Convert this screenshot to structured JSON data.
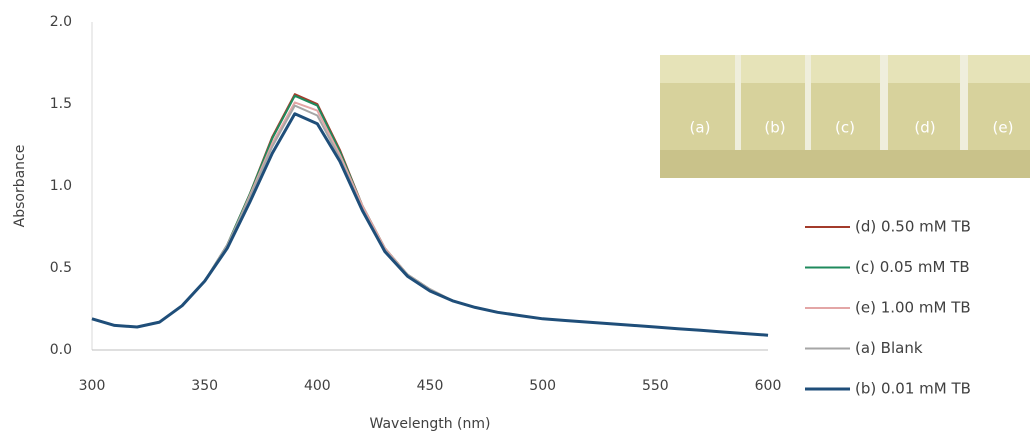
{
  "chart_data": {
    "type": "line",
    "x_label": "Wavelength (nm)",
    "y_label": "Absorbance",
    "x": [
      300,
      310,
      320,
      330,
      340,
      350,
      360,
      370,
      380,
      390,
      400,
      410,
      420,
      430,
      440,
      450,
      460,
      470,
      480,
      490,
      500,
      510,
      520,
      530,
      540,
      550,
      560,
      570,
      580,
      590,
      600
    ],
    "series": [
      {
        "name": "(d) 0.50 mM TB",
        "color": "#a33b2b",
        "values": [
          0.19,
          0.15,
          0.14,
          0.17,
          0.27,
          0.42,
          0.64,
          0.95,
          1.3,
          1.56,
          1.5,
          1.22,
          0.88,
          0.62,
          0.46,
          0.37,
          0.3,
          0.26,
          0.23,
          0.21,
          0.19,
          0.18,
          0.17,
          0.16,
          0.15,
          0.14,
          0.13,
          0.12,
          0.11,
          0.1,
          0.09
        ]
      },
      {
        "name": "(c) 0.05 mM TB",
        "color": "#1f8a5c",
        "values": [
          0.19,
          0.15,
          0.14,
          0.17,
          0.27,
          0.42,
          0.64,
          0.95,
          1.29,
          1.55,
          1.49,
          1.21,
          0.88,
          0.62,
          0.46,
          0.37,
          0.3,
          0.26,
          0.23,
          0.21,
          0.19,
          0.18,
          0.17,
          0.16,
          0.15,
          0.14,
          0.13,
          0.12,
          0.11,
          0.1,
          0.09
        ]
      },
      {
        "name": "(e) 1.00 mM TB",
        "color": "#e3a6a6",
        "values": [
          0.19,
          0.15,
          0.14,
          0.17,
          0.27,
          0.42,
          0.63,
          0.94,
          1.26,
          1.51,
          1.46,
          1.19,
          0.88,
          0.62,
          0.46,
          0.37,
          0.3,
          0.26,
          0.23,
          0.21,
          0.19,
          0.18,
          0.17,
          0.16,
          0.15,
          0.14,
          0.13,
          0.12,
          0.11,
          0.1,
          0.09
        ]
      },
      {
        "name": "(a) Blank",
        "color": "#a6a6a6",
        "values": [
          0.19,
          0.15,
          0.14,
          0.17,
          0.27,
          0.42,
          0.64,
          0.93,
          1.24,
          1.49,
          1.43,
          1.17,
          0.86,
          0.61,
          0.46,
          0.37,
          0.3,
          0.26,
          0.23,
          0.21,
          0.19,
          0.18,
          0.17,
          0.16,
          0.15,
          0.14,
          0.13,
          0.12,
          0.11,
          0.1,
          0.09
        ]
      },
      {
        "name": "(b) 0.01 mM TB",
        "color": "#1f4e79",
        "values": [
          0.19,
          0.15,
          0.14,
          0.17,
          0.27,
          0.42,
          0.62,
          0.9,
          1.2,
          1.44,
          1.38,
          1.15,
          0.85,
          0.6,
          0.45,
          0.36,
          0.3,
          0.26,
          0.23,
          0.21,
          0.19,
          0.18,
          0.17,
          0.16,
          0.15,
          0.14,
          0.13,
          0.12,
          0.11,
          0.1,
          0.09
        ]
      }
    ],
    "xlim": [
      300,
      600
    ],
    "xticks": [
      300,
      350,
      400,
      450,
      500,
      550,
      600
    ],
    "ylim": [
      0,
      2
    ],
    "yticks": [
      {
        "value": 0,
        "label": "0.0"
      },
      0.5,
      {
        "value": 1,
        "label": "1.0"
      },
      1.5,
      {
        "value": 2,
        "label": "2.0"
      }
    ],
    "grid": false,
    "legend": "right",
    "inset_labels": [
      "(a)",
      "(b)",
      "(c)",
      "(d)",
      "(e)"
    ]
  }
}
